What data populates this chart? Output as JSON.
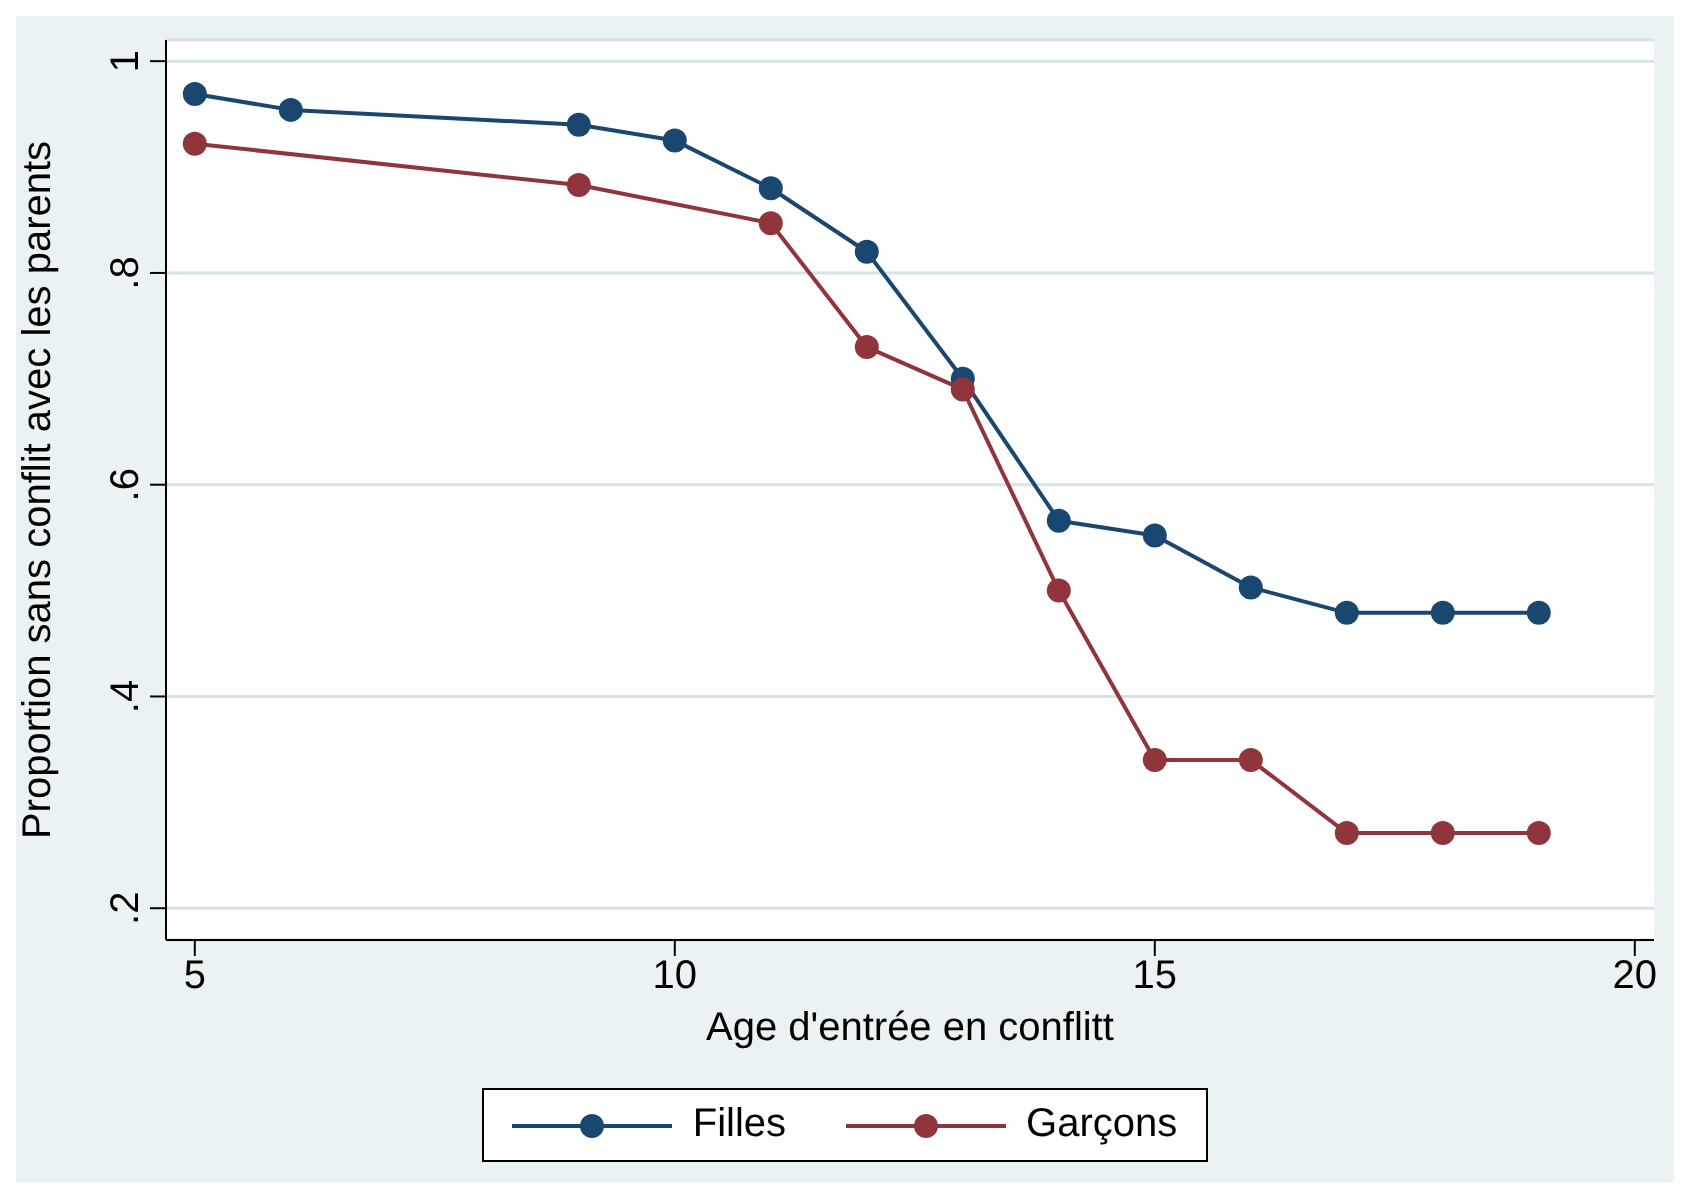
{
  "chart_data": {
    "type": "line",
    "xlabel": "Age d'entrée en conflitt",
    "ylabel": "Proportion sans conflit avec les parents",
    "series": [
      {
        "name": "Filles",
        "color": "#1a476f",
        "x": [
          5,
          6,
          9,
          10,
          11,
          12,
          13,
          14,
          15,
          16,
          17,
          18,
          19
        ],
        "values": [
          0.969,
          0.954,
          0.94,
          0.925,
          0.88,
          0.82,
          0.7,
          0.566,
          0.552,
          0.503,
          0.479,
          0.479,
          0.479
        ]
      },
      {
        "name": "Garçons",
        "color": "#90353b",
        "x": [
          5,
          9,
          11,
          12,
          13,
          14,
          15,
          16,
          17,
          18,
          19
        ],
        "values": [
          0.922,
          0.883,
          0.847,
          0.73,
          0.69,
          0.5,
          0.34,
          0.34,
          0.271,
          0.271,
          0.271
        ]
      }
    ],
    "xlim": [
      4.7,
      20.2
    ],
    "xticks": [
      5,
      10,
      15,
      20
    ],
    "ylim": [
      0.17,
      1.02
    ],
    "yticks": [
      {
        "value": 0.2,
        "label": ".2"
      },
      {
        "value": 0.4,
        "label": ".4"
      },
      {
        "value": 0.6,
        "label": ".6"
      },
      {
        "value": 0.8,
        "label": ".8"
      },
      {
        "value": 1,
        "label": "1"
      }
    ],
    "grid": "y",
    "legend": "bottom",
    "marker": "circle",
    "line_style": "solid"
  }
}
